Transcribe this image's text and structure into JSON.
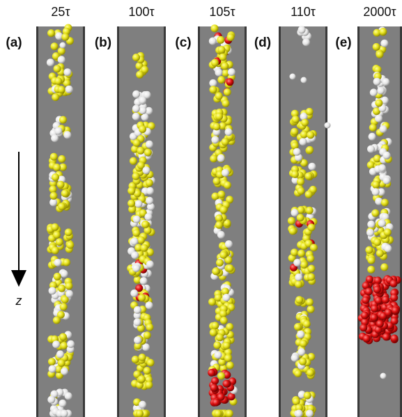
{
  "panels": [
    {
      "time": "25τ",
      "label": "(a)"
    },
    {
      "time": "100τ",
      "label": "(b)"
    },
    {
      "time": "105τ",
      "label": "(c)"
    },
    {
      "time": "110τ",
      "label": "(d)"
    },
    {
      "time": "2000τ",
      "label": "(e)"
    }
  ],
  "axis_label": "z"
}
